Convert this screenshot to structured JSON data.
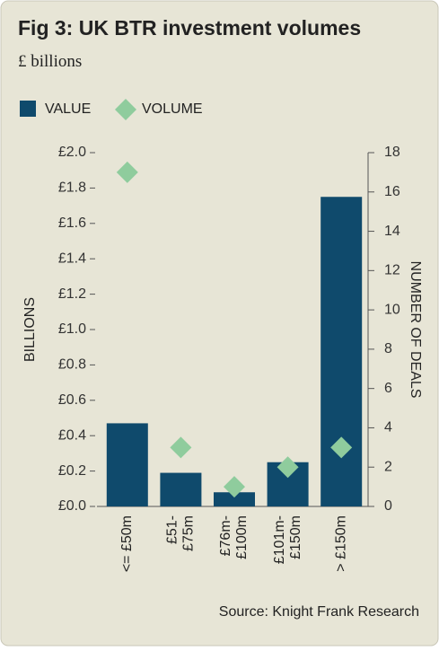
{
  "chart_data": {
    "type": "bar-scatter",
    "title": "Fig 3: UK BTR investment volumes",
    "subtitle": "£ billions",
    "y_label": "BILLIONS",
    "y2_label": "NUMBER OF DEALS",
    "source": "Source: Knight Frank Research",
    "categories": [
      [
        "<= £50m"
      ],
      [
        "£51-",
        "£75m"
      ],
      [
        "£76m-",
        "£100m"
      ],
      [
        "£101m-",
        "£150m"
      ],
      [
        "> £150m"
      ]
    ],
    "series": [
      {
        "name": "VALUE",
        "color": "#0f4a6c",
        "values": [
          0.47,
          0.19,
          0.08,
          0.25,
          1.75
        ]
      },
      {
        "name": "VOLUME",
        "color": "#8fcc9d",
        "values": [
          17,
          3,
          1,
          2,
          3
        ],
        "axis": "y2"
      }
    ],
    "ylim": [
      0,
      2.0
    ],
    "yticks": [
      {
        "value": 0,
        "label": "£0.0"
      },
      {
        "value": 0.2,
        "label": "£0.2"
      },
      {
        "value": 0.4,
        "label": "£0.4"
      },
      {
        "value": 0.6,
        "label": "£0.6"
      },
      {
        "value": 0.8,
        "label": "£0.8"
      },
      {
        "value": 1.0,
        "label": "£1.0"
      },
      {
        "value": 1.2,
        "label": "£1.2"
      },
      {
        "value": 1.4,
        "label": "£1.4"
      },
      {
        "value": 1.6,
        "label": "£1.6"
      },
      {
        "value": 1.8,
        "label": "£1.8"
      },
      {
        "value": 2.0,
        "label": "£2.0"
      }
    ],
    "y2lim": [
      0,
      18
    ],
    "y2ticks": [
      0,
      2,
      4,
      6,
      8,
      10,
      12,
      14,
      16,
      18
    ]
  }
}
